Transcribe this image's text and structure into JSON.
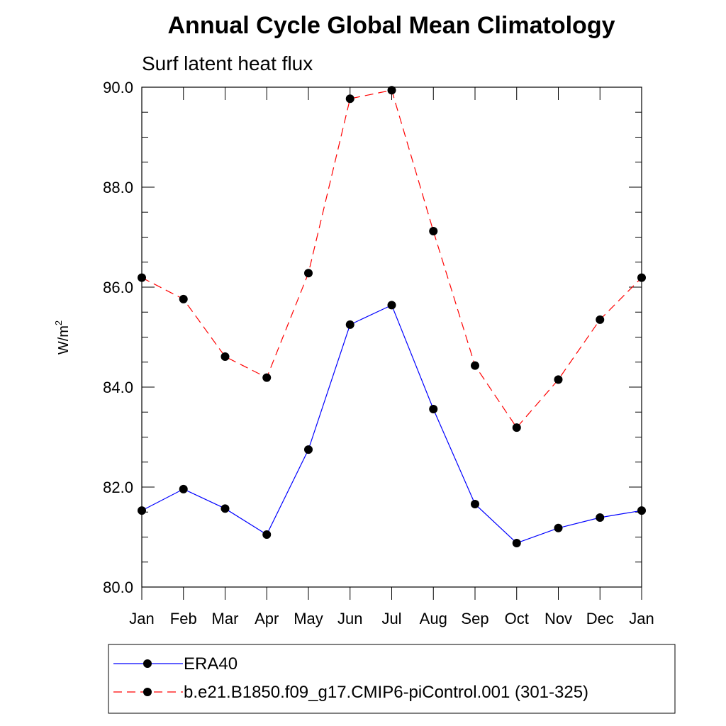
{
  "chart_data": {
    "type": "line",
    "title": "Annual Cycle Global Mean Climatology",
    "subtitle": "Surf latent heat flux",
    "ylabel": "W/m",
    "ylabel_sup": "2",
    "xlabel": "",
    "categories": [
      "Jan",
      "Feb",
      "Mar",
      "Apr",
      "May",
      "Jun",
      "Jul",
      "Aug",
      "Sep",
      "Oct",
      "Nov",
      "Dec",
      "Jan"
    ],
    "ylim": [
      80.0,
      90.0
    ],
    "yticks": [
      "80.0",
      "82.0",
      "84.0",
      "86.0",
      "88.0",
      "90.0"
    ],
    "grid": false,
    "legend_position": "bottom",
    "series": [
      {
        "name": "ERA40",
        "color": "#0000ff",
        "line_style": "solid",
        "marker": "filled-circle",
        "values": [
          81.53,
          81.96,
          81.57,
          81.05,
          82.75,
          85.25,
          85.64,
          83.56,
          81.66,
          80.88,
          81.18,
          81.39,
          81.53
        ]
      },
      {
        "name": "b.e21.B1850.f09_g17.CMIP6-piControl.001 (301-325)",
        "color": "#ff0000",
        "line_style": "dashed",
        "marker": "filled-circle",
        "values": [
          86.19,
          85.76,
          84.61,
          84.19,
          86.28,
          89.77,
          89.94,
          87.12,
          84.43,
          83.19,
          84.15,
          85.35,
          86.19
        ]
      }
    ]
  }
}
